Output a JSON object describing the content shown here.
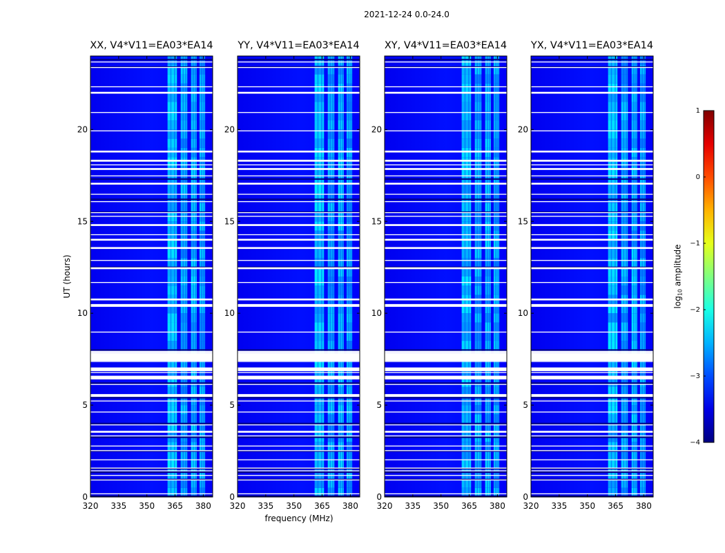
{
  "suptitle": "2021-12-24 0.0-24.0",
  "chart_data": {
    "type": "heatmap",
    "xlabel": "frequency (MHz)",
    "ylabel": "UT (hours)",
    "xlim": [
      320,
      385
    ],
    "ylim": [
      0,
      24
    ],
    "xticks": [
      320,
      335,
      350,
      365,
      380
    ],
    "yticks": [
      0,
      5,
      10,
      15,
      20
    ],
    "colorbar": {
      "label_prefix": "log",
      "label_sub": "10",
      "label_suffix": " amplitude",
      "range": [
        -4,
        1
      ],
      "ticks": [
        -4,
        -3,
        -2,
        -1,
        0,
        1
      ],
      "tick_labels": [
        "−4",
        "−3",
        "−2",
        "−1",
        "0",
        "1"
      ],
      "colormap": "jet"
    },
    "background_level": -3.3,
    "rfi_band_mhz": [
      361,
      381
    ],
    "rfi_subbands_mhz": [
      [
        361,
        366
      ],
      [
        368,
        371.5
      ],
      [
        373.5,
        376.5
      ],
      [
        378,
        381
      ]
    ],
    "flagged_ut_hours": [
      [
        0.15,
        0.2
      ],
      [
        0.9,
        0.95
      ],
      [
        1.15,
        1.2
      ],
      [
        1.4,
        1.45
      ],
      [
        1.55,
        1.6
      ],
      [
        2.0,
        2.05
      ],
      [
        2.5,
        2.55
      ],
      [
        2.75,
        2.8
      ],
      [
        3.3,
        3.35
      ],
      [
        3.5,
        3.6
      ],
      [
        3.9,
        3.95
      ],
      [
        4.6,
        4.65
      ],
      [
        5.2,
        5.25
      ],
      [
        5.45,
        5.6
      ],
      [
        6.1,
        6.15
      ],
      [
        6.4,
        6.6
      ],
      [
        6.75,
        6.8
      ],
      [
        6.85,
        7.05
      ],
      [
        7.35,
        7.4
      ],
      [
        7.85,
        7.95
      ],
      [
        8.95,
        9.0
      ],
      [
        10.35,
        10.5
      ],
      [
        10.7,
        10.8
      ],
      [
        11.65,
        11.7
      ],
      [
        12.4,
        12.5
      ],
      [
        12.85,
        12.9
      ],
      [
        13.5,
        13.6
      ],
      [
        13.95,
        14.05
      ],
      [
        14.25,
        14.3
      ],
      [
        14.75,
        14.85
      ],
      [
        15.25,
        15.3
      ],
      [
        15.45,
        15.5
      ],
      [
        16.05,
        16.1
      ],
      [
        16.45,
        16.5
      ],
      [
        17.0,
        17.1
      ],
      [
        17.45,
        17.5
      ],
      [
        17.8,
        17.9
      ],
      [
        18.05,
        18.1
      ],
      [
        18.25,
        18.35
      ],
      [
        18.75,
        18.85
      ],
      [
        19.9,
        19.95
      ],
      [
        20.9,
        20.95
      ],
      [
        21.95,
        22.05
      ],
      [
        22.3,
        22.35
      ],
      [
        23.35,
        23.4
      ],
      [
        23.65,
        23.7
      ]
    ],
    "fully_flagged_ut_hours": [
      [
        7.4,
        7.85
      ]
    ],
    "dark_ut_hours": [
      0.05,
      0.95,
      1.35,
      1.55,
      2.5,
      3.25,
      4.0,
      5.4,
      6.2,
      7.6,
      7.9,
      8.0,
      12.5,
      15.5,
      16.2,
      17.3,
      23.8,
      23.4
    ],
    "panels": [
      {
        "title": "XX, V4*V11=EA03*EA14",
        "polarization": "XX"
      },
      {
        "title": "YY, V4*V11=EA03*EA14",
        "polarization": "YY"
      },
      {
        "title": "XY, V4*V11=EA03*EA14",
        "polarization": "XY"
      },
      {
        "title": "YX, V4*V11=EA03*EA14",
        "polarization": "YX"
      }
    ]
  }
}
